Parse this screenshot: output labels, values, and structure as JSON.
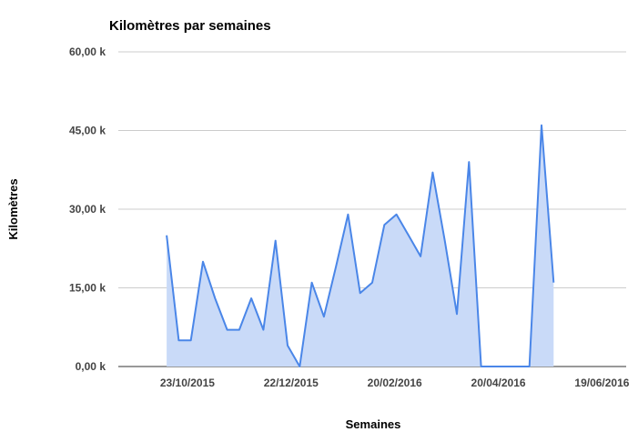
{
  "chart_data": {
    "type": "area",
    "title": "Kilomètres par semaines",
    "xlabel": "Semaines",
    "ylabel": "Kilomètres",
    "ylim": [
      0,
      60
    ],
    "yticks": [
      {
        "value": 0,
        "label": "0,00 k"
      },
      {
        "value": 15,
        "label": "15,00 k"
      },
      {
        "value": 30,
        "label": "30,00 k"
      },
      {
        "value": 45,
        "label": "45,00 k"
      },
      {
        "value": 60,
        "label": "60,00 k"
      }
    ],
    "xlim": [
      "2015-09-13",
      "2016-07-03"
    ],
    "xticks": [
      {
        "date": "2015-10-23",
        "label": "23/10/2015"
      },
      {
        "date": "2015-12-22",
        "label": "22/12/2015"
      },
      {
        "date": "2016-02-20",
        "label": "20/02/2016"
      },
      {
        "date": "2016-04-20",
        "label": "20/04/2016"
      },
      {
        "date": "2016-06-19",
        "label": "19/06/2016"
      }
    ],
    "grid": true,
    "legend": "none",
    "colors": {
      "line": "#4a86e8",
      "fill": "#c9daf8",
      "grid": "#cccccc",
      "axis": "#333333"
    },
    "series": [
      {
        "x": [
          "2015-10-11",
          "2015-10-18",
          "2015-10-25",
          "2015-11-01",
          "2015-11-08",
          "2015-11-15",
          "2015-11-22",
          "2015-11-29",
          "2015-12-06",
          "2015-12-13",
          "2015-12-20",
          "2015-12-27",
          "2016-01-03",
          "2016-01-10",
          "2016-01-17",
          "2016-01-24",
          "2016-01-31",
          "2016-02-07",
          "2016-02-14",
          "2016-02-21",
          "2016-02-28",
          "2016-03-06",
          "2016-03-13",
          "2016-03-20",
          "2016-03-27",
          "2016-04-03",
          "2016-04-10",
          "2016-04-17",
          "2016-04-24",
          "2016-05-01",
          "2016-05-08",
          "2016-05-15",
          "2016-05-22"
        ],
        "y": [
          25,
          5,
          5,
          20,
          13,
          7,
          7,
          13,
          7,
          24,
          4,
          0,
          16,
          9.5,
          19,
          29,
          14,
          16,
          27,
          29,
          25,
          21,
          37,
          24,
          10,
          39,
          0,
          0,
          0,
          0,
          0,
          46,
          16
        ]
      }
    ]
  }
}
